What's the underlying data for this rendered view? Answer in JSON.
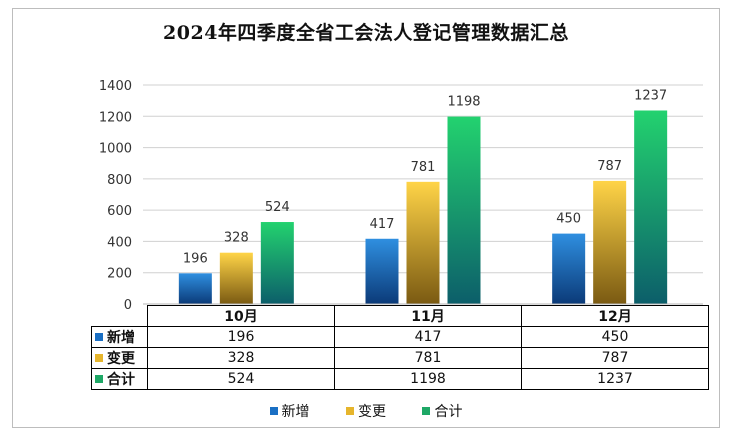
{
  "chart_data": {
    "type": "bar",
    "title": "2024年四季度全省工会法人登记管理数据汇总",
    "categories": [
      "10月",
      "11月",
      "12月"
    ],
    "series": [
      {
        "name": "新增",
        "values": [
          196,
          417,
          450
        ],
        "color_top": "#2f8fe0",
        "color_bottom": "#0b3a78"
      },
      {
        "name": "变更",
        "values": [
          328,
          781,
          787
        ],
        "color_top": "#ffd447",
        "color_bottom": "#7a5a12"
      },
      {
        "name": "合计",
        "values": [
          524,
          1198,
          1237
        ],
        "color_top": "#23d26f",
        "color_bottom": "#0c5e6a"
      }
    ],
    "yticks": [
      0,
      200,
      400,
      600,
      800,
      1000,
      1200,
      1400
    ],
    "ylim": [
      0,
      1400
    ],
    "grid": true,
    "legend_position": "bottom",
    "data_table": true
  }
}
